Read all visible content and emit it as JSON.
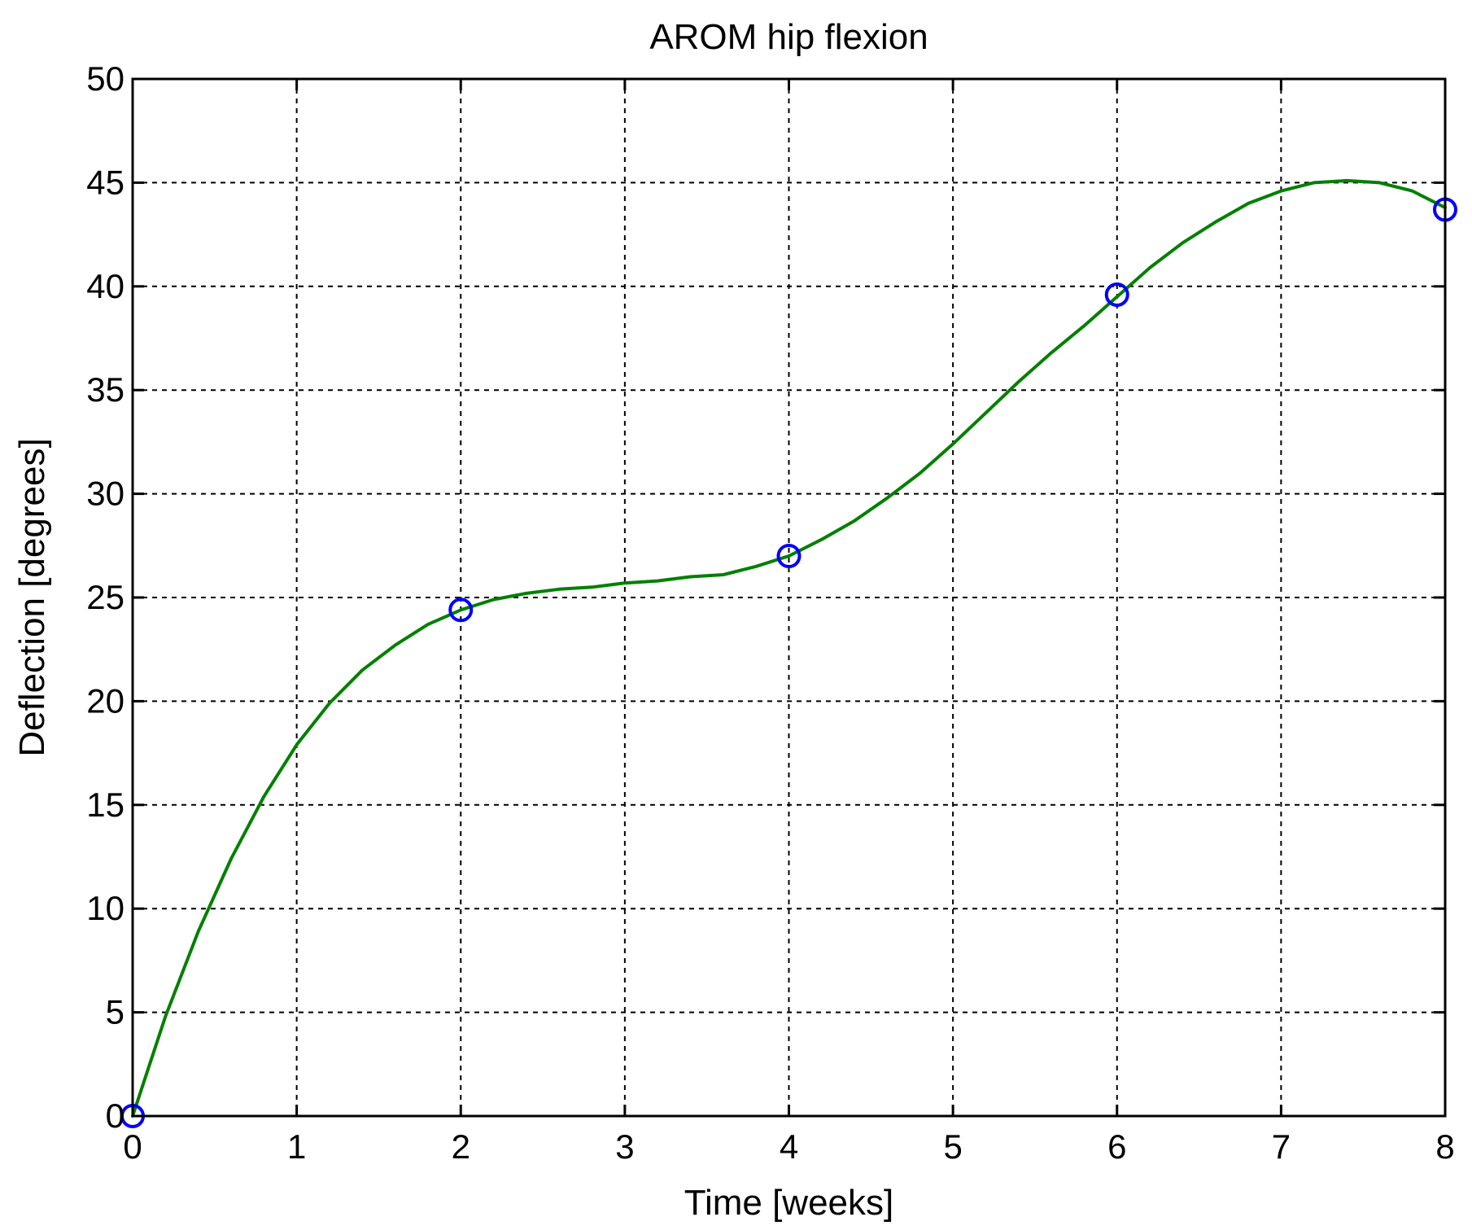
{
  "chart_data": {
    "type": "line",
    "title": "AROM hip flexion",
    "xlabel": "Time [weeks]",
    "ylabel": "Deflection [degrees]",
    "xlim": [
      0,
      8
    ],
    "ylim": [
      0,
      50
    ],
    "xticks": [
      0,
      1,
      2,
      3,
      4,
      5,
      6,
      7,
      8
    ],
    "yticks": [
      0,
      5,
      10,
      15,
      20,
      25,
      30,
      35,
      40,
      45,
      50
    ],
    "grid": true,
    "grid_style": "dashed",
    "series": [
      {
        "kind": "fitted-curve",
        "color": "#008000",
        "x": [
          0,
          0.2,
          0.4,
          0.6,
          0.8,
          1.0,
          1.2,
          1.4,
          1.6,
          1.8,
          2.0,
          2.2,
          2.4,
          2.6,
          2.8,
          3.0,
          3.2,
          3.4,
          3.6,
          3.8,
          4.0,
          4.2,
          4.4,
          4.6,
          4.8,
          5.0,
          5.2,
          5.4,
          5.6,
          5.8,
          6.0,
          6.2,
          6.4,
          6.6,
          6.8,
          7.0,
          7.2,
          7.4,
          7.6,
          7.8,
          8.0
        ],
        "y": [
          0,
          4.8,
          8.9,
          12.4,
          15.4,
          17.9,
          19.9,
          21.5,
          22.7,
          23.7,
          24.4,
          24.9,
          25.2,
          25.4,
          25.5,
          25.7,
          25.8,
          26.0,
          26.1,
          26.5,
          27.0,
          27.8,
          28.7,
          29.8,
          31.0,
          32.4,
          33.9,
          35.4,
          36.8,
          38.1,
          39.5,
          40.9,
          42.1,
          43.1,
          44.0,
          44.6,
          45.0,
          45.1,
          45.0,
          44.6,
          43.8
        ]
      },
      {
        "kind": "measured-points",
        "color": "#0000ff",
        "marker": "circle",
        "x": [
          0,
          2,
          4,
          6,
          8
        ],
        "y": [
          0,
          24.4,
          27.0,
          39.6,
          43.7
        ]
      }
    ]
  }
}
